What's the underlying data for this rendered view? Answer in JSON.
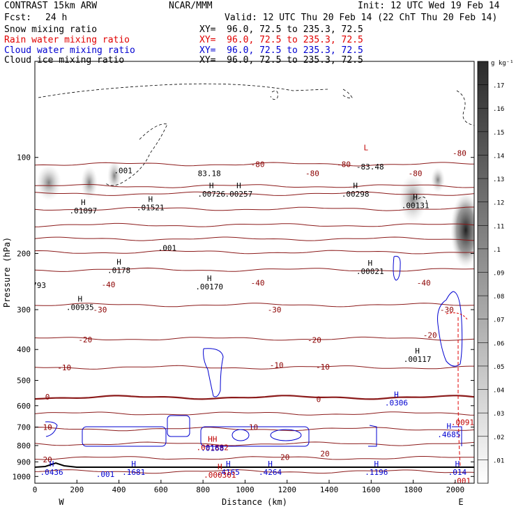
{
  "header": {
    "model": "CONTRAST 15km ARW",
    "org": "NCAR/MMM",
    "init": "Init: 12 UTC Wed 19 Feb 14",
    "fcst_label": "Fcst:",
    "fcst_value": "24 h",
    "valid": "Valid: 12 UTC Thu 20 Feb 14 (22 ChT Thu 20 Feb 14)",
    "fields": [
      {
        "name": "Snow mixing ratio",
        "xy": "XY=  96.0, 72.5 to 235.3, 72.5",
        "color": "#000000"
      },
      {
        "name": "Rain water mixing ratio",
        "xy": "XY=  96.0, 72.5 to 235.3, 72.5",
        "color": "#e00000"
      },
      {
        "name": "Cloud water mixing ratio",
        "xy": "XY=  96.0, 72.5 to 235.3, 72.5",
        "color": "#0000d0"
      },
      {
        "name": "Cloud ice mixing ratio",
        "xy": "XY=  96.0, 72.5 to 235.3, 72.5",
        "color": "#000000"
      }
    ]
  },
  "chart_data": {
    "type": "cross-section contour",
    "xlabel": "Distance (km)",
    "ylabel": "Pressure (hPa)",
    "xlim": [
      0,
      2090
    ],
    "ylim": [
      1050,
      50
    ],
    "y_scale": "log",
    "x_ticks": [
      0,
      200,
      400,
      600,
      800,
      1000,
      1200,
      1400,
      1600,
      1800,
      2000
    ],
    "y_ticks": [
      100,
      200,
      300,
      400,
      500,
      600,
      700,
      800,
      900,
      1000
    ],
    "x_end_labels": {
      "left": "W",
      "right": "E"
    },
    "colorbar": {
      "unit": "g kg⁻¹",
      "levels": [
        ".01",
        ".02",
        ".03",
        ".04",
        ".05",
        ".06",
        ".07",
        ".08",
        ".09",
        ".1",
        ".11",
        ".12",
        ".13",
        ".14",
        ".15",
        ".16",
        ".17"
      ]
    },
    "temperature_contours": [
      {
        "label": "-80",
        "p": 105
      },
      {
        "label": "-80",
        "p": 123
      },
      {
        "label": "-80",
        "p": 130
      },
      {
        "label": "",
        "p": 145
      },
      {
        "label": "",
        "p": 163
      },
      {
        "label": "",
        "p": 180
      },
      {
        "label": "",
        "p": 198
      },
      {
        "label": "-40",
        "p": 225
      },
      {
        "label": "-30",
        "p": 290
      },
      {
        "label": "-20",
        "p": 370
      },
      {
        "label": "-10",
        "p": 455
      },
      {
        "label": "0",
        "p": 565
      },
      {
        "label": "",
        "p": 635
      },
      {
        "label": "10",
        "p": 710
      },
      {
        "label": "",
        "p": 790
      },
      {
        "label": "20",
        "p": 875
      },
      {
        "label": "",
        "p": 965
      }
    ],
    "contour_labels": [
      {
        "text": ".001",
        "x": 420,
        "p": 110,
        "color": "#000000"
      },
      {
        "text": ".001",
        "x": 630,
        "p": 192,
        "color": "#000000"
      },
      {
        "text": "83.18",
        "x": 830,
        "p": 112,
        "color": "#000000"
      },
      {
        "text": "L",
        "x": 1575,
        "p": 93,
        "color": "#c00000"
      },
      {
        "text": "-83.48",
        "x": 1595,
        "p": 107,
        "color": "#000000"
      },
      {
        "text": "-80",
        "x": 1060,
        "p": 105,
        "color": "#8b0000"
      },
      {
        "text": "-80",
        "x": 1320,
        "p": 112,
        "color": "#8b0000"
      },
      {
        "text": "-80",
        "x": 1470,
        "p": 105,
        "color": "#8b0000"
      },
      {
        "text": "-80",
        "x": 1810,
        "p": 112,
        "color": "#8b0000"
      },
      {
        "text": "-80",
        "x": 2020,
        "p": 97,
        "color": "#8b0000"
      },
      {
        "text": "-40",
        "x": 350,
        "p": 250,
        "color": "#8b0000"
      },
      {
        "text": "-40",
        "x": 1060,
        "p": 247,
        "color": "#8b0000"
      },
      {
        "text": "-40",
        "x": 1850,
        "p": 247,
        "color": "#8b0000"
      },
      {
        "text": "-30",
        "x": 310,
        "p": 300,
        "color": "#8b0000"
      },
      {
        "text": "-30",
        "x": 1140,
        "p": 300,
        "color": "#8b0000"
      },
      {
        "text": "-30",
        "x": 1960,
        "p": 300,
        "color": "#8b0000"
      },
      {
        "text": "-20",
        "x": 240,
        "p": 372,
        "color": "#8b0000"
      },
      {
        "text": "-20",
        "x": 1330,
        "p": 373,
        "color": "#8b0000"
      },
      {
        "text": "-20",
        "x": 1880,
        "p": 360,
        "color": "#8b0000"
      },
      {
        "text": "-10",
        "x": 140,
        "p": 455,
        "color": "#8b0000"
      },
      {
        "text": "-10",
        "x": 1150,
        "p": 448,
        "color": "#8b0000"
      },
      {
        "text": "-10",
        "x": 1370,
        "p": 453,
        "color": "#8b0000"
      },
      {
        "text": "0",
        "x": 60,
        "p": 562,
        "color": "#8b0000"
      },
      {
        "text": "0",
        "x": 1350,
        "p": 572,
        "color": "#8b0000"
      },
      {
        "text": "10",
        "x": 60,
        "p": 700,
        "color": "#8b0000"
      },
      {
        "text": "10",
        "x": 1040,
        "p": 700,
        "color": "#8b0000"
      },
      {
        "text": "20",
        "x": 60,
        "p": 885,
        "color": "#8b0000"
      },
      {
        "text": "20",
        "x": 1190,
        "p": 870,
        "color": "#8b0000"
      },
      {
        "text": "20",
        "x": 1380,
        "p": 848,
        "color": "#8b0000"
      }
    ],
    "maxima": [
      {
        "mark": "H",
        "value": ".01097",
        "x": 230,
        "p": 143,
        "color": "#000000"
      },
      {
        "mark": "H",
        "value": ".01521",
        "x": 550,
        "p": 140,
        "color": "#000000"
      },
      {
        "mark": "H",
        "value": ".00726",
        "x": 840,
        "p": 127,
        "color": "#000000"
      },
      {
        "mark": "H",
        "value": ".00257",
        "x": 970,
        "p": 127,
        "color": "#000000"
      },
      {
        "mark": "H",
        "value": ".00298",
        "x": 1525,
        "p": 127,
        "color": "#000000"
      },
      {
        "mark": "H",
        "value": ".00131",
        "x": 1810,
        "p": 138,
        "color": "#000000"
      },
      {
        "mark": "H",
        "value": ".0178",
        "x": 400,
        "p": 220,
        "color": "#000000"
      },
      {
        "mark": "H",
        "value": ".00170",
        "x": 830,
        "p": 248,
        "color": "#000000"
      },
      {
        "mark": "H",
        "value": ".00021",
        "x": 1595,
        "p": 222,
        "color": "#000000"
      },
      {
        "mark": "H",
        "value": ".00935",
        "x": 215,
        "p": 287,
        "color": "#000000"
      },
      {
        "mark": "",
        "value": "793",
        "x": 20,
        "p": 245,
        "color": "#000000"
      },
      {
        "mark": "H",
        "value": ".00117",
        "x": 1820,
        "p": 418,
        "color": "#000000"
      },
      {
        "mark": "H",
        "value": ".0306",
        "x": 1720,
        "p": 573,
        "color": "#0000d0"
      },
      {
        "mark": "H",
        "value": ".4685",
        "x": 1970,
        "p": 720,
        "color": "#0000d0"
      },
      {
        "mark": "",
        "value": ".0091",
        "x": 2035,
        "p": 660,
        "color": "#c00000"
      },
      {
        "mark": "HH",
        "value": ".001882",
        "x": 845,
        "p": 790,
        "color": "#c00000"
      },
      {
        "mark": "",
        "value": ".0168",
        "x": 845,
        "p": 795,
        "color": "#0000d0"
      },
      {
        "mark": "H",
        "value": ".0436",
        "x": 80,
        "p": 945,
        "color": "#0000d0"
      },
      {
        "mark": "",
        "value": ".001",
        "x": 335,
        "p": 960,
        "color": "#0000d0"
      },
      {
        "mark": "H",
        "value": ".1681",
        "x": 470,
        "p": 945,
        "color": "#0000d0"
      },
      {
        "mark": "H",
        "value": ".4165",
        "x": 920,
        "p": 945,
        "color": "#0000d0"
      },
      {
        "mark": "H",
        "value": ".4264",
        "x": 1120,
        "p": 945,
        "color": "#0000d0"
      },
      {
        "mark": "H",
        "value": ".1196",
        "x": 1625,
        "p": 945,
        "color": "#0000d0"
      },
      {
        "mark": "H",
        "value": ".014",
        "x": 2010,
        "p": 945,
        "color": "#0000d0"
      },
      {
        "mark": "H",
        "value": ".000301",
        "x": 880,
        "p": 965,
        "color": "#c00000"
      },
      {
        "mark": "",
        "value": ".001",
        "x": 2030,
        "p": 1005,
        "color": "#c00000"
      }
    ]
  }
}
